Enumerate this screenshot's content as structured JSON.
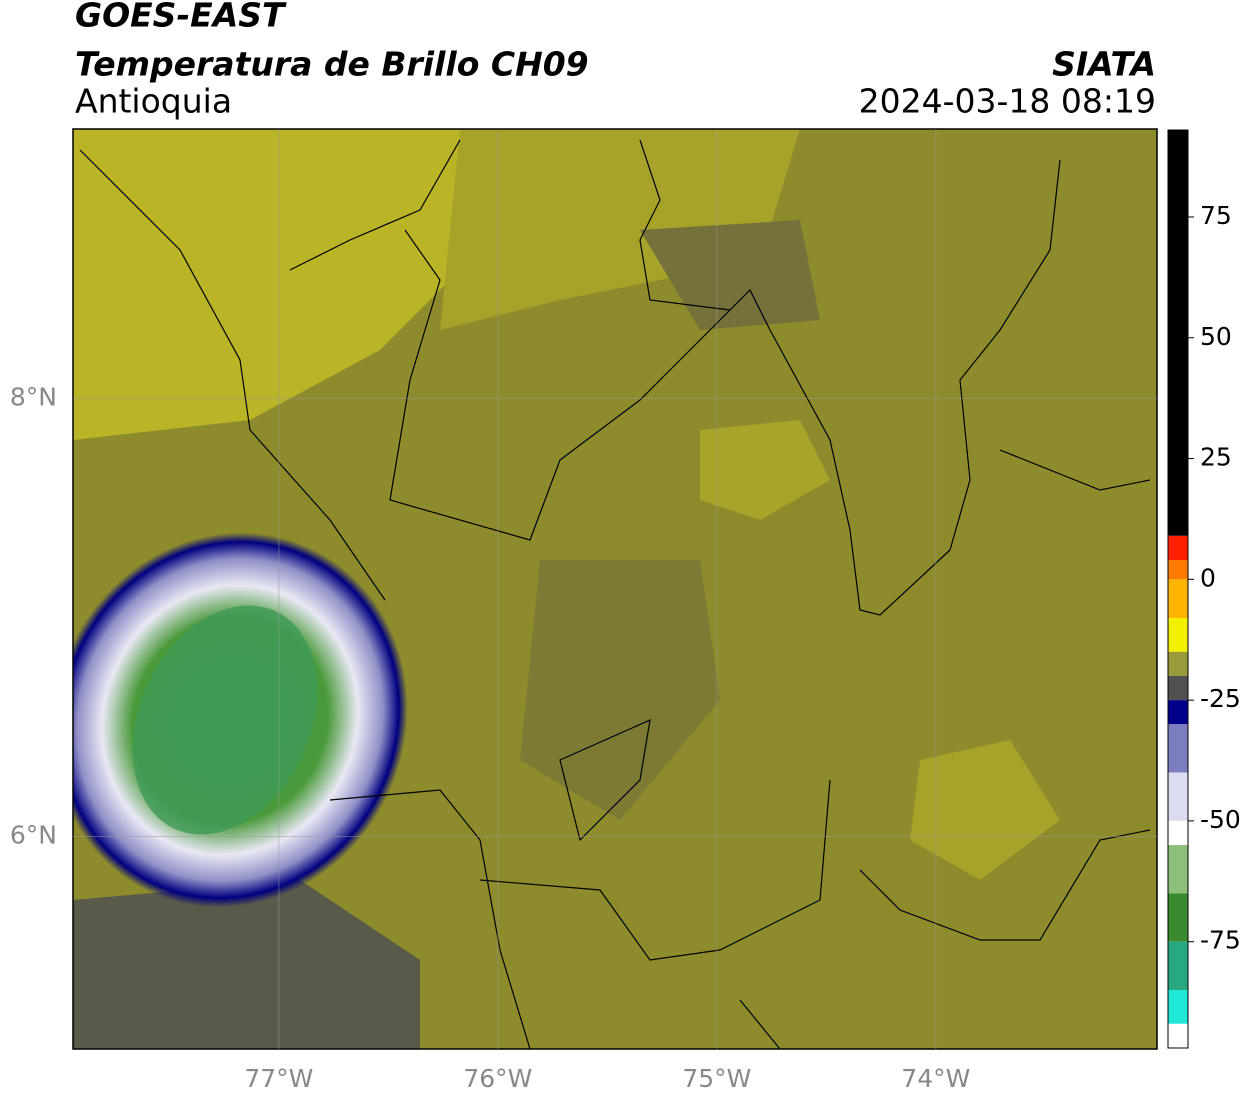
{
  "header": {
    "title": "GOES-EAST",
    "subtitle": "Temperatura de Brillo CH09",
    "region": "Antioquia",
    "source": "SIATA",
    "datetime": "2024-03-18 08:19"
  },
  "map": {
    "xlim": [
      -77.94,
      -72.99
    ],
    "ylim": [
      5.03,
      9.23
    ],
    "xticks": [
      {
        "value": -77,
        "label": "77°W"
      },
      {
        "value": -76,
        "label": "76°W"
      },
      {
        "value": -75,
        "label": "75°W"
      },
      {
        "value": -74,
        "label": "74°W"
      }
    ],
    "yticks": [
      {
        "value": 6,
        "label": "6°N"
      },
      {
        "value": 8,
        "label": "8°N"
      }
    ],
    "grid": true
  },
  "colorbar": {
    "lim": [
      -97,
      93
    ],
    "ticks": [
      -75,
      -50,
      -25,
      0,
      25,
      50,
      75
    ],
    "segments": [
      {
        "from": 9,
        "to": 93,
        "color": "#000000"
      },
      {
        "from": 4,
        "to": 9,
        "color": "#ff2000"
      },
      {
        "from": 0,
        "to": 4,
        "color": "#ff7a00"
      },
      {
        "from": -8,
        "to": 0,
        "color": "#ffb400"
      },
      {
        "from": -15,
        "to": -8,
        "color": "#f2f000"
      },
      {
        "from": -20,
        "to": -15,
        "color": "#9a9a3a"
      },
      {
        "from": -25,
        "to": -20,
        "color": "#505050"
      },
      {
        "from": -30,
        "to": -25,
        "color": "#00008a"
      },
      {
        "from": -40,
        "to": -30,
        "color": "#7c7cc0"
      },
      {
        "from": -50,
        "to": -40,
        "color": "#dcdcf0"
      },
      {
        "from": -55,
        "to": -50,
        "color": "#ffffff"
      },
      {
        "from": -65,
        "to": -55,
        "color": "#8cc07a"
      },
      {
        "from": -75,
        "to": -65,
        "color": "#3a8a30"
      },
      {
        "from": -85,
        "to": -75,
        "color": "#28a880"
      },
      {
        "from": -92,
        "to": -85,
        "color": "#20e8d8"
      },
      {
        "from": -97,
        "to": -92,
        "color": "#ffffff"
      }
    ]
  }
}
